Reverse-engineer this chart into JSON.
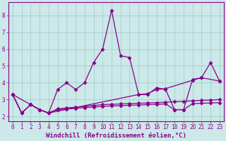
{
  "xlabel": "Windchill (Refroidissement éolien,°C)",
  "background_color": "#cce8e8",
  "line_color": "#880088",
  "xlim": [
    -0.5,
    23.5
  ],
  "ylim": [
    1.7,
    8.8
  ],
  "yticks": [
    2,
    3,
    4,
    5,
    6,
    7,
    8
  ],
  "xticks": [
    0,
    1,
    2,
    3,
    4,
    5,
    6,
    7,
    8,
    9,
    10,
    11,
    12,
    13,
    14,
    15,
    16,
    17,
    18,
    19,
    20,
    21,
    22,
    23
  ],
  "line1_x": [
    0,
    1,
    2,
    3,
    4,
    5,
    6,
    7,
    8,
    9,
    10,
    11,
    12,
    13,
    14,
    15,
    16,
    17,
    18,
    19,
    20,
    21,
    22,
    23
  ],
  "line1_y": [
    3.3,
    2.2,
    2.7,
    2.4,
    2.2,
    3.6,
    4.0,
    3.6,
    4.0,
    5.2,
    6.0,
    8.3,
    5.6,
    5.5,
    3.3,
    3.3,
    3.7,
    3.6,
    2.4,
    2.4,
    4.2,
    4.3,
    5.2,
    4.1
  ],
  "line2_x": [
    0,
    2,
    3,
    4,
    14,
    15,
    16,
    17,
    20,
    21,
    23
  ],
  "line2_y": [
    3.3,
    2.7,
    2.4,
    2.2,
    3.3,
    3.35,
    3.6,
    3.65,
    4.15,
    4.3,
    4.1
  ],
  "line3_x": [
    0,
    1,
    2,
    3,
    4,
    5,
    6,
    7,
    8,
    9,
    10,
    11,
    12,
    13,
    14,
    15,
    16,
    17,
    18,
    19,
    20,
    21,
    22,
    23
  ],
  "line3_y": [
    3.3,
    2.2,
    2.7,
    2.4,
    2.2,
    2.45,
    2.5,
    2.55,
    2.6,
    2.65,
    2.7,
    2.72,
    2.74,
    2.76,
    2.78,
    2.8,
    2.82,
    2.85,
    2.87,
    2.9,
    2.92,
    2.95,
    2.97,
    3.0
  ],
  "line4_x": [
    0,
    1,
    2,
    3,
    4,
    5,
    6,
    7,
    8,
    9,
    10,
    11,
    12,
    13,
    14,
    15,
    16,
    17,
    18,
    19,
    20,
    21,
    22,
    23
  ],
  "line4_y": [
    3.3,
    2.2,
    2.7,
    2.4,
    2.2,
    2.4,
    2.44,
    2.48,
    2.52,
    2.56,
    2.6,
    2.62,
    2.64,
    2.66,
    2.68,
    2.7,
    2.72,
    2.74,
    2.4,
    2.4,
    2.76,
    2.78,
    2.8,
    2.82
  ],
  "grid_color": "#99cccc",
  "marker": "D",
  "markersize": 2.5,
  "linewidth": 0.9,
  "xlabel_fontsize": 6.5,
  "tick_fontsize": 5.5
}
